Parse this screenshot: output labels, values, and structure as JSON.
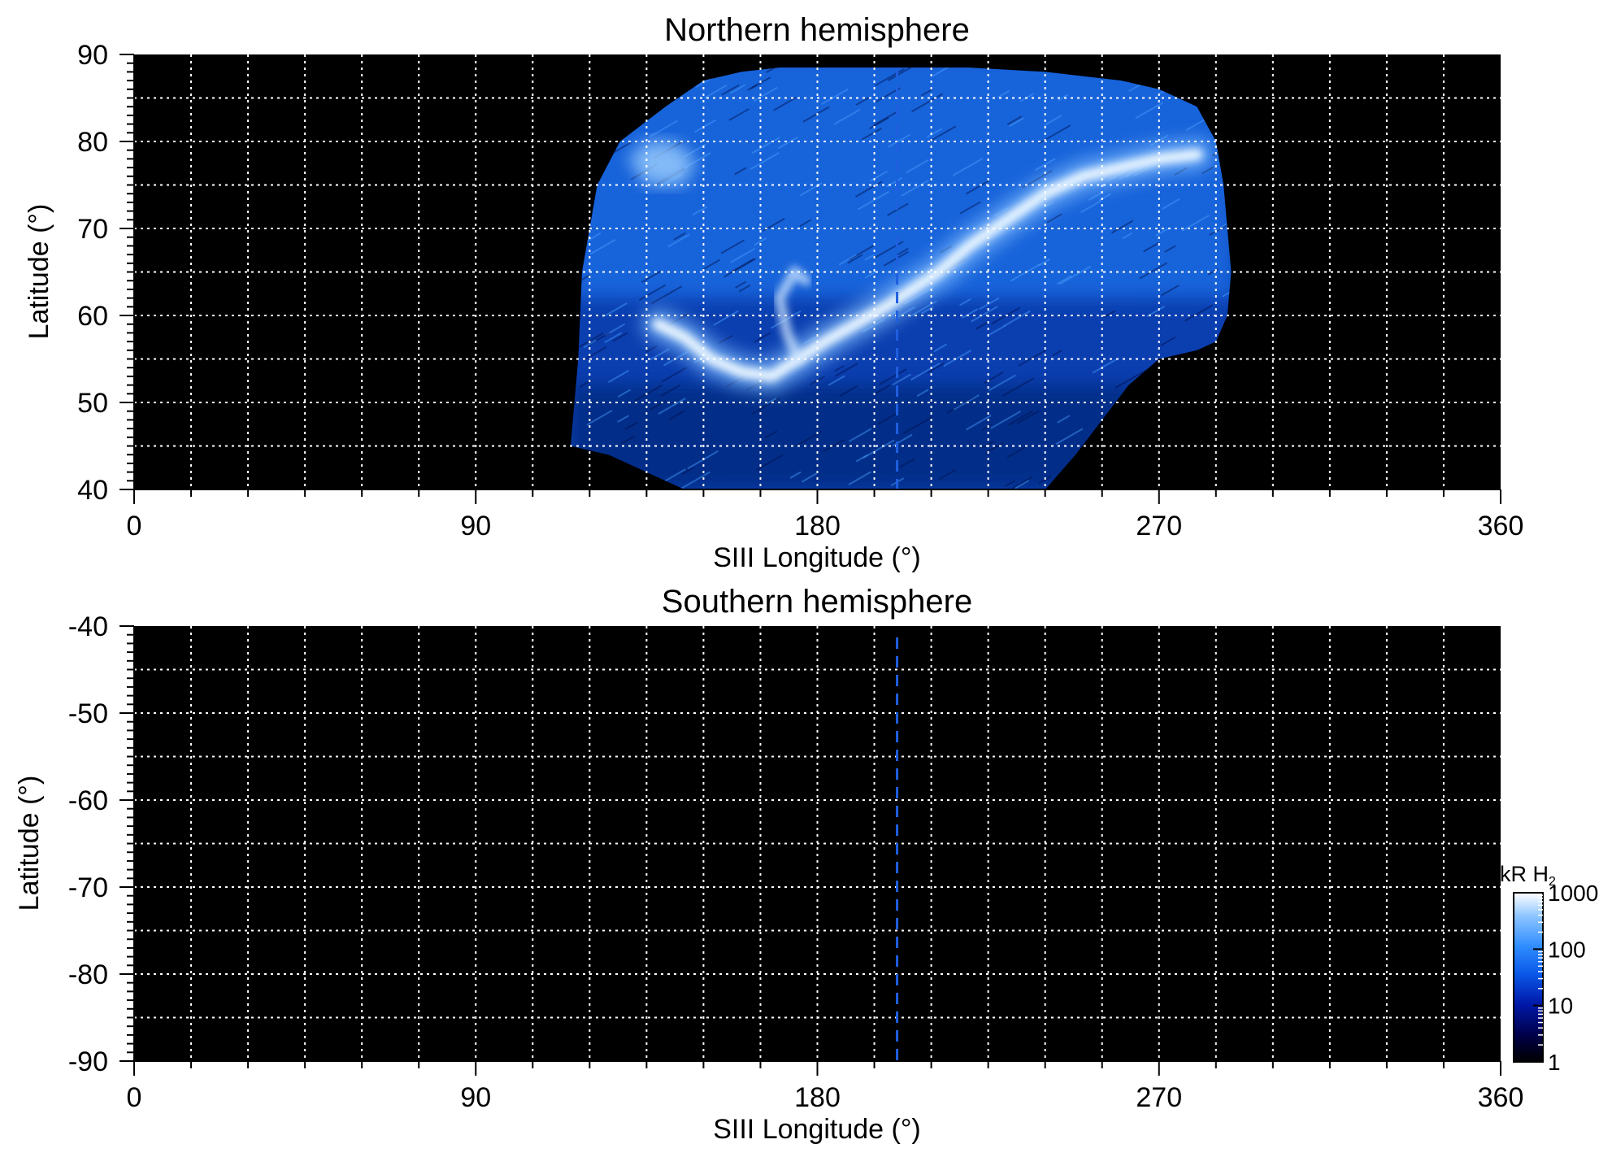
{
  "chart_data": [
    {
      "type": "heatmap",
      "title": "Northern hemisphere",
      "xlabel": "SIII Longitude (°)",
      "ylabel": "Latitude (°)",
      "xlim": [
        0,
        360
      ],
      "ylim": [
        40,
        90
      ],
      "x_ticks": [
        0,
        90,
        180,
        270,
        360
      ],
      "y_ticks": [
        40,
        50,
        60,
        70,
        80,
        90
      ],
      "x_tick_labels": [
        "0",
        "90",
        "180",
        "270",
        "360"
      ],
      "y_tick_labels": [
        "40",
        "50",
        "60",
        "70",
        "80",
        "90"
      ],
      "grid": true,
      "grid_x_step": 15,
      "grid_y_step": 5,
      "dashed_line_longitude": 201,
      "observed_region": [
        [
          115,
          45
        ],
        [
          117,
          55
        ],
        [
          118,
          65
        ],
        [
          122,
          75
        ],
        [
          128,
          80
        ],
        [
          140,
          84
        ],
        [
          150,
          87
        ],
        [
          160,
          88
        ],
        [
          170,
          88.5
        ],
        [
          180,
          88.5
        ],
        [
          200,
          88.5
        ],
        [
          220,
          88.5
        ],
        [
          240,
          88
        ],
        [
          260,
          87
        ],
        [
          270,
          86
        ],
        [
          280,
          84
        ],
        [
          285,
          80
        ],
        [
          287,
          75
        ],
        [
          288,
          70
        ],
        [
          289,
          65
        ],
        [
          288,
          60
        ],
        [
          285,
          57
        ],
        [
          280,
          56
        ],
        [
          270,
          55
        ],
        [
          262,
          52
        ],
        [
          255,
          48
        ],
        [
          248,
          44
        ],
        [
          240,
          40
        ],
        [
          145,
          40
        ],
        [
          135,
          42
        ],
        [
          125,
          44
        ]
      ],
      "main_oval": [
        [
          138,
          59
        ],
        [
          145,
          57.5
        ],
        [
          152,
          55
        ],
        [
          160,
          53.5
        ],
        [
          168,
          53
        ],
        [
          175,
          55
        ],
        [
          182,
          57
        ],
        [
          190,
          59
        ],
        [
          198,
          61
        ],
        [
          205,
          63
        ],
        [
          212,
          65
        ],
        [
          220,
          68
        ],
        [
          230,
          71
        ],
        [
          240,
          74
        ],
        [
          250,
          76
        ],
        [
          260,
          77
        ],
        [
          270,
          78
        ],
        [
          280,
          78.5
        ]
      ],
      "secondary_arc": [
        [
          175,
          55
        ],
        [
          172,
          58
        ],
        [
          170,
          62
        ],
        [
          174,
          65
        ],
        [
          177,
          64
        ]
      ],
      "polar_bright_patch": [
        [
          130,
          78
        ],
        [
          135,
          80
        ],
        [
          142,
          80
        ],
        [
          148,
          78
        ],
        [
          145,
          75
        ],
        [
          135,
          75
        ]
      ],
      "color_scale": "log"
    },
    {
      "type": "heatmap",
      "title": "Southern hemisphere",
      "xlabel": "SIII Longitude (°)",
      "ylabel": "Latitude (°)",
      "xlim": [
        0,
        360
      ],
      "ylim": [
        -90,
        -40
      ],
      "x_ticks": [
        0,
        90,
        180,
        270,
        360
      ],
      "y_ticks": [
        -40,
        -50,
        -60,
        -70,
        -80,
        -90
      ],
      "x_tick_labels": [
        "0",
        "90",
        "180",
        "270",
        "360"
      ],
      "y_tick_labels": [
        "-40",
        "-50",
        "-60",
        "-70",
        "-80",
        "-90"
      ],
      "grid": true,
      "grid_x_step": 15,
      "grid_y_step": 5,
      "dashed_line_longitude": 201,
      "observed_region": [],
      "color_scale": "log"
    }
  ],
  "colorbar": {
    "title": "kR H",
    "title_subscript": "2",
    "scale": "log",
    "range": [
      1,
      1000
    ],
    "ticks": [
      1,
      10,
      100,
      1000
    ],
    "tick_labels": [
      "1",
      "10",
      "100",
      "1000"
    ],
    "colors": [
      "#000000",
      "#00004a",
      "#0018a8",
      "#0a58e8",
      "#2e8cff",
      "#8cc4ff",
      "#ffffff"
    ]
  }
}
